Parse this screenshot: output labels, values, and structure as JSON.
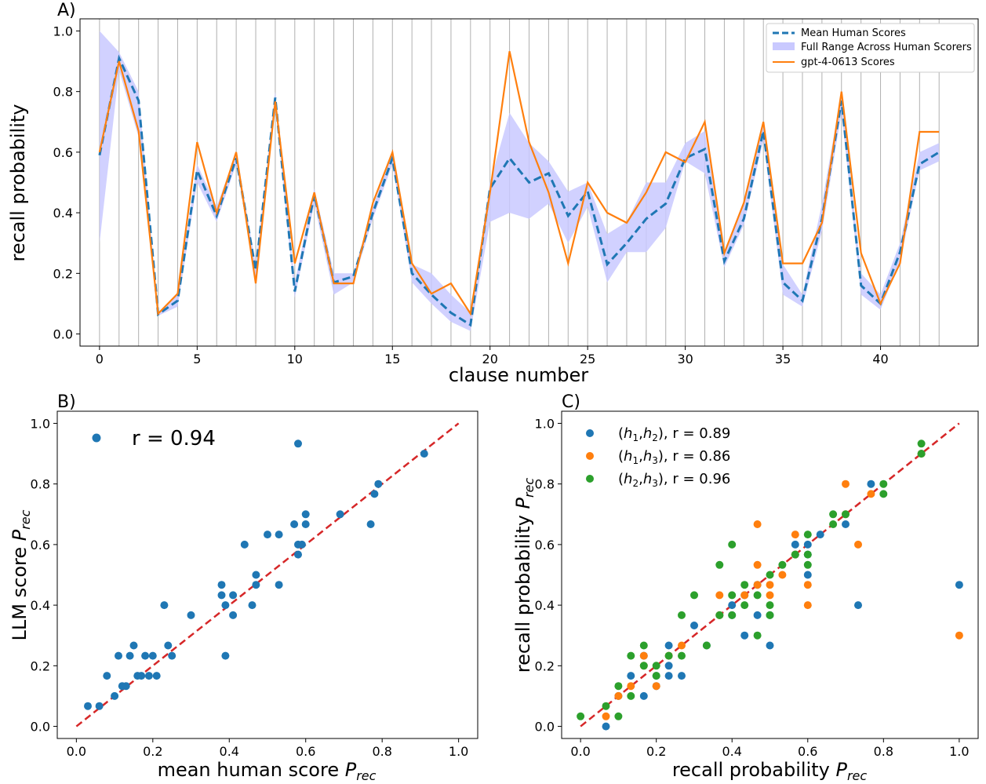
{
  "colors": {
    "blue": "#1f77b4",
    "orange": "#ff7f0e",
    "green": "#2ca02c",
    "band": "#c9c9ff",
    "red": "#d62728",
    "grid": "#b0b0b0"
  },
  "chart_data": [
    {
      "panel": "A)",
      "type": "line",
      "xlabel": "clause number",
      "ylabel": "recall probability",
      "xlim": [
        -1,
        45
      ],
      "ylim": [
        -0.04,
        1.04
      ],
      "xticks": [
        0,
        5,
        10,
        15,
        20,
        25,
        30,
        35,
        40
      ],
      "yticks": [
        0.0,
        0.2,
        0.4,
        0.6,
        0.8,
        1.0
      ],
      "vertical_gridlines": "every clause (0-43)",
      "legend_position": "top-right",
      "x": [
        0,
        1,
        2,
        3,
        4,
        5,
        6,
        7,
        8,
        9,
        10,
        11,
        12,
        13,
        14,
        15,
        16,
        17,
        18,
        19,
        20,
        21,
        22,
        23,
        24,
        25,
        26,
        27,
        28,
        29,
        30,
        31,
        32,
        33,
        34,
        35,
        36,
        37,
        38,
        39,
        40,
        41,
        42,
        43
      ],
      "series": [
        {
          "name": "Mean Human Scores",
          "style": "dashed",
          "values": [
            0.59,
            0.91,
            0.77,
            0.065,
            0.11,
            0.54,
            0.39,
            0.58,
            0.21,
            0.78,
            0.14,
            0.46,
            0.17,
            0.19,
            0.4,
            0.58,
            0.2,
            0.13,
            0.07,
            0.03,
            0.48,
            0.58,
            0.5,
            0.53,
            0.39,
            0.47,
            0.23,
            0.3,
            0.38,
            0.43,
            0.58,
            0.61,
            0.24,
            0.38,
            0.67,
            0.17,
            0.11,
            0.38,
            0.77,
            0.16,
            0.1,
            0.27,
            0.56,
            0.6
          ]
        },
        {
          "name": "Full Range Across Human Scorers",
          "style": "band",
          "lower": [
            0.3,
            0.87,
            0.65,
            0.06,
            0.09,
            0.5,
            0.37,
            0.56,
            0.19,
            0.75,
            0.12,
            0.43,
            0.13,
            0.17,
            0.38,
            0.56,
            0.17,
            0.1,
            0.04,
            0.01,
            0.37,
            0.4,
            0.38,
            0.43,
            0.3,
            0.42,
            0.17,
            0.27,
            0.27,
            0.35,
            0.57,
            0.53,
            0.22,
            0.36,
            0.64,
            0.13,
            0.09,
            0.34,
            0.73,
            0.13,
            0.08,
            0.24,
            0.54,
            0.57
          ],
          "upper": [
            1.0,
            0.93,
            0.8,
            0.07,
            0.13,
            0.56,
            0.42,
            0.6,
            0.23,
            0.8,
            0.17,
            0.48,
            0.2,
            0.2,
            0.42,
            0.6,
            0.23,
            0.2,
            0.13,
            0.07,
            0.5,
            0.73,
            0.63,
            0.57,
            0.47,
            0.5,
            0.33,
            0.37,
            0.5,
            0.5,
            0.63,
            0.67,
            0.27,
            0.43,
            0.7,
            0.23,
            0.13,
            0.43,
            0.8,
            0.2,
            0.13,
            0.3,
            0.6,
            0.63
          ]
        },
        {
          "name": "gpt-4-0613 Scores",
          "style": "solid",
          "values": [
            0.6,
            0.9,
            0.67,
            0.067,
            0.133,
            0.633,
            0.4,
            0.6,
            0.167,
            0.767,
            0.233,
            0.467,
            0.167,
            0.167,
            0.433,
            0.6,
            0.233,
            0.133,
            0.167,
            0.067,
            0.467,
            0.933,
            0.633,
            0.467,
            0.233,
            0.5,
            0.4,
            0.367,
            0.467,
            0.6,
            0.567,
            0.7,
            0.267,
            0.433,
            0.7,
            0.233,
            0.233,
            0.367,
            0.8,
            0.267,
            0.1,
            0.233,
            0.667,
            0.667
          ]
        }
      ]
    },
    {
      "panel": "B)",
      "type": "scatter",
      "xlabel": "mean human score",
      "ylabel": "LLM score",
      "subscript": "rec",
      "xlim": [
        -0.05,
        1.05
      ],
      "ylim": [
        -0.04,
        1.04
      ],
      "xticks": [
        0.0,
        0.2,
        0.4,
        0.6,
        0.8,
        1.0
      ],
      "yticks": [
        0.0,
        0.2,
        0.4,
        0.6,
        0.8,
        1.0
      ],
      "diagonal": "y = x (red dashed)",
      "legend_position": "top-left",
      "series": [
        {
          "name": "r = 0.94",
          "x": [
            0.03,
            0.06,
            0.08,
            0.1,
            0.11,
            0.12,
            0.13,
            0.14,
            0.15,
            0.16,
            0.17,
            0.18,
            0.19,
            0.2,
            0.21,
            0.23,
            0.24,
            0.25,
            0.3,
            0.38,
            0.38,
            0.39,
            0.39,
            0.41,
            0.41,
            0.44,
            0.46,
            0.47,
            0.47,
            0.5,
            0.53,
            0.53,
            0.57,
            0.58,
            0.58,
            0.58,
            0.59,
            0.6,
            0.6,
            0.69,
            0.77,
            0.78,
            0.79,
            0.91
          ],
          "y": [
            0.067,
            0.067,
            0.167,
            0.1,
            0.233,
            0.133,
            0.133,
            0.233,
            0.267,
            0.167,
            0.167,
            0.233,
            0.167,
            0.233,
            0.167,
            0.4,
            0.267,
            0.233,
            0.367,
            0.433,
            0.467,
            0.233,
            0.4,
            0.433,
            0.367,
            0.6,
            0.4,
            0.5,
            0.467,
            0.633,
            0.467,
            0.633,
            0.667,
            0.933,
            0.6,
            0.567,
            0.6,
            0.667,
            0.7,
            0.7,
            0.667,
            0.767,
            0.8,
            0.9
          ]
        }
      ]
    },
    {
      "panel": "C)",
      "type": "scatter",
      "xlabel": "recall probability",
      "ylabel": "recall probability",
      "subscript": "rec",
      "xlim": [
        -0.05,
        1.05
      ],
      "ylim": [
        -0.04,
        1.04
      ],
      "xticks": [
        0.0,
        0.2,
        0.4,
        0.6,
        0.8,
        1.0
      ],
      "yticks": [
        0.0,
        0.2,
        0.4,
        0.6,
        0.8,
        1.0
      ],
      "diagonal": "y = x (red dashed)",
      "legend_position": "top-left",
      "series": [
        {
          "name_parts": [
            "(",
            "h",
            "1",
            ",",
            "h",
            "2",
            "), r = 0.89"
          ],
          "color": "blue",
          "x": [
            0.067,
            0.1,
            0.133,
            0.167,
            0.167,
            0.2,
            0.233,
            0.233,
            0.267,
            0.3,
            0.367,
            0.4,
            0.4,
            0.433,
            0.467,
            0.467,
            0.5,
            0.5,
            0.567,
            0.6,
            0.6,
            0.6,
            0.633,
            0.7,
            0.733,
            0.767,
            0.9,
            1.0,
            0.433,
            0.333,
            0.2,
            0.233,
            0.567
          ],
          "y": [
            0.0,
            0.1,
            0.167,
            0.1,
            0.233,
            0.167,
            0.267,
            0.167,
            0.167,
            0.333,
            0.367,
            0.4,
            0.367,
            0.3,
            0.367,
            0.467,
            0.267,
            0.367,
            0.6,
            0.567,
            0.5,
            0.6,
            0.633,
            0.667,
            0.4,
            0.8,
            0.9,
            0.467,
            0.433,
            0.267,
            0.133,
            0.2,
            0.567
          ]
        },
        {
          "name_parts": [
            "(",
            "h",
            "1",
            ",",
            "h",
            "3",
            "), r = 0.86"
          ],
          "color": "orange",
          "x": [
            0.067,
            0.1,
            0.133,
            0.167,
            0.167,
            0.2,
            0.233,
            0.267,
            0.367,
            0.367,
            0.433,
            0.467,
            0.467,
            0.5,
            0.533,
            0.567,
            0.567,
            0.6,
            0.6,
            0.7,
            0.7,
            0.733,
            0.767,
            0.9,
            1.0,
            0.467,
            0.5
          ],
          "y": [
            0.033,
            0.1,
            0.133,
            0.233,
            0.2,
            0.133,
            0.233,
            0.267,
            0.433,
            0.367,
            0.433,
            0.667,
            0.533,
            0.467,
            0.5,
            0.633,
            0.567,
            0.467,
            0.4,
            0.8,
            0.7,
            0.6,
            0.767,
            0.9,
            0.3,
            0.467,
            0.433
          ]
        },
        {
          "name_parts": [
            "(",
            "h",
            "2",
            ",",
            "h",
            "3",
            "), r = 0.96"
          ],
          "color": "green",
          "x": [
            0.0,
            0.067,
            0.1,
            0.1,
            0.133,
            0.133,
            0.167,
            0.167,
            0.2,
            0.2,
            0.233,
            0.267,
            0.267,
            0.3,
            0.333,
            0.367,
            0.367,
            0.4,
            0.4,
            0.433,
            0.433,
            0.467,
            0.467,
            0.5,
            0.5,
            0.533,
            0.567,
            0.6,
            0.6,
            0.6,
            0.667,
            0.667,
            0.7,
            0.8,
            0.8,
            0.9,
            0.9,
            0.4,
            0.5
          ],
          "y": [
            0.033,
            0.067,
            0.033,
            0.133,
            0.233,
            0.1,
            0.267,
            0.2,
            0.2,
            0.167,
            0.233,
            0.367,
            0.233,
            0.433,
            0.267,
            0.533,
            0.367,
            0.6,
            0.367,
            0.467,
            0.4,
            0.3,
            0.433,
            0.4,
            0.367,
            0.533,
            0.567,
            0.633,
            0.567,
            0.533,
            0.7,
            0.667,
            0.7,
            0.8,
            0.767,
            0.933,
            0.9,
            0.433,
            0.5
          ]
        }
      ]
    }
  ]
}
